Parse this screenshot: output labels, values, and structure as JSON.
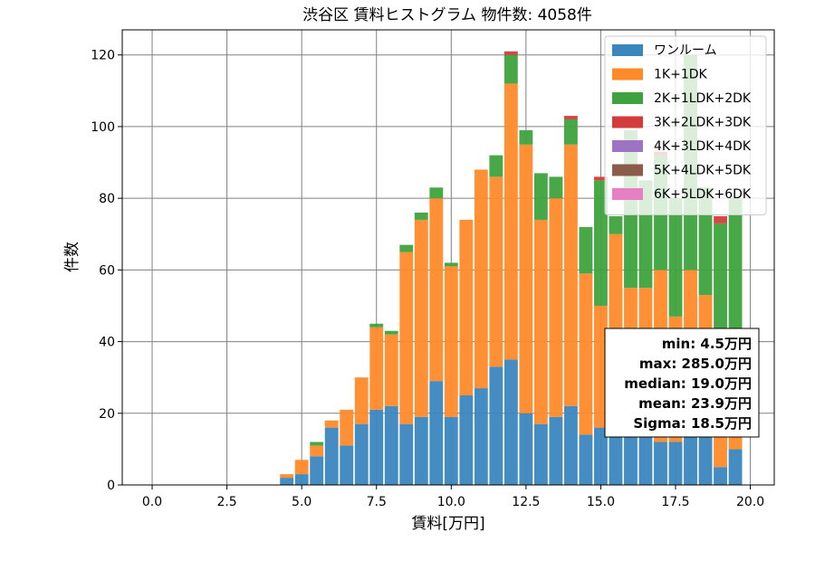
{
  "chart_data": {
    "type": "bar",
    "stacked": true,
    "title": "渋谷区 賃料ヒストグラム  物件数: 4058件",
    "xlabel": "賃料[万円]",
    "ylabel": "件数",
    "xlim": [
      -1.0,
      20.8
    ],
    "ylim": [
      0,
      127
    ],
    "xticks": [
      0.0,
      2.5,
      5.0,
      7.5,
      10.0,
      12.5,
      15.0,
      17.5,
      20.0
    ],
    "xtick_labels": [
      "0.0",
      "2.5",
      "5.0",
      "7.5",
      "10.0",
      "12.5",
      "15.0",
      "17.5",
      "20.0"
    ],
    "yticks": [
      0,
      20,
      40,
      60,
      80,
      100,
      120
    ],
    "ytick_labels": [
      "0",
      "20",
      "40",
      "60",
      "80",
      "100",
      "120"
    ],
    "grid": true,
    "legend_position": "top-right",
    "bin_width": 0.5,
    "x": [
      4.5,
      5.0,
      5.5,
      6.0,
      6.5,
      7.0,
      7.5,
      8.0,
      8.5,
      9.0,
      9.5,
      10.0,
      10.5,
      11.0,
      11.5,
      12.0,
      12.5,
      13.0,
      13.5,
      14.0,
      14.5,
      15.0,
      15.5,
      16.0,
      16.5,
      17.0,
      17.5,
      18.0,
      18.5,
      19.0,
      19.5
    ],
    "series": [
      {
        "name": "ワンルーム",
        "color": "#3a86be",
        "values": [
          2,
          3,
          8,
          16,
          11,
          17,
          21,
          22,
          17,
          19,
          29,
          19,
          25,
          27,
          33,
          35,
          20,
          17,
          19,
          22,
          14,
          16,
          15,
          15,
          14,
          12,
          12,
          15,
          15,
          5,
          10
        ]
      },
      {
        "name": "1K+1DK",
        "color": "#ff8a2a",
        "values": [
          1,
          4,
          3,
          2,
          10,
          13,
          23,
          20,
          48,
          55,
          51,
          42,
          49,
          61,
          53,
          77,
          75,
          57,
          61,
          73,
          45,
          34,
          55,
          40,
          41,
          48,
          35,
          45,
          38,
          10,
          10
        ]
      },
      {
        "name": "2K+1LDK+2DK",
        "color": "#3ea33e",
        "values": [
          0,
          0,
          1,
          0,
          0,
          0,
          1,
          1,
          2,
          2,
          3,
          1,
          0,
          0,
          6,
          8,
          4,
          13,
          6,
          7,
          13,
          35,
          5,
          44,
          30,
          32,
          33,
          60,
          30,
          58,
          60
        ]
      },
      {
        "name": "3K+2LDK+3DK",
        "color": "#d63b3b",
        "values": [
          0,
          0,
          0,
          0,
          0,
          0,
          0,
          0,
          0,
          0,
          0,
          0,
          0,
          0,
          0,
          1,
          0,
          0,
          0,
          1,
          0,
          1,
          0,
          0,
          0,
          1,
          0,
          0,
          0,
          2,
          0
        ]
      },
      {
        "name": "4K+3LDK+4DK",
        "color": "#9d74c5",
        "values": [
          0,
          0,
          0,
          0,
          0,
          0,
          0,
          0,
          0,
          0,
          0,
          0,
          0,
          0,
          0,
          0,
          0,
          0,
          0,
          0,
          0,
          0,
          0,
          0,
          0,
          0,
          0,
          0,
          0,
          0,
          0
        ]
      },
      {
        "name": "5K+4LDK+5DK",
        "color": "#8c5c4a",
        "values": [
          0,
          0,
          0,
          0,
          0,
          0,
          0,
          0,
          0,
          0,
          0,
          0,
          0,
          0,
          0,
          0,
          0,
          0,
          0,
          0,
          0,
          0,
          0,
          0,
          0,
          0,
          0,
          0,
          0,
          0,
          0
        ]
      },
      {
        "name": "6K+5LDK+6DK",
        "color": "#e67fc3",
        "values": [
          0,
          0,
          0,
          0,
          0,
          0,
          0,
          0,
          0,
          0,
          0,
          0,
          0,
          0,
          0,
          0,
          0,
          0,
          0,
          0,
          0,
          0,
          0,
          0,
          0,
          0,
          0,
          0,
          0,
          0,
          0
        ]
      }
    ],
    "stats": [
      "min: 4.5万円",
      "max: 285.0万円",
      "median: 19.0万円",
      "mean: 23.9万円",
      "Sigma: 18.5万円"
    ]
  }
}
